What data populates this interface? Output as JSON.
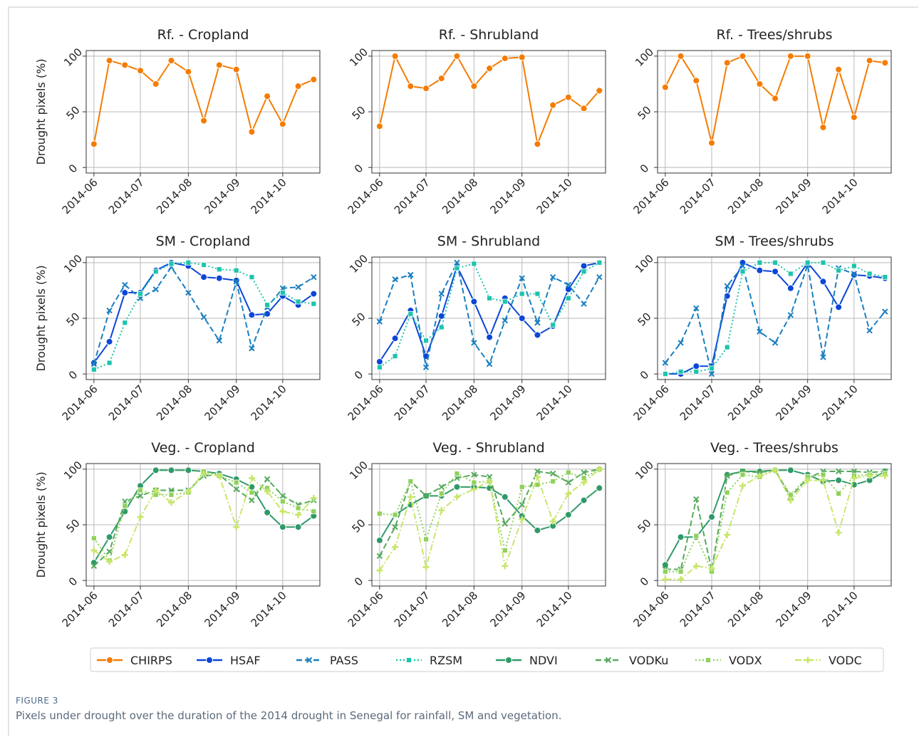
{
  "figure_label": "FIGURE 3",
  "caption": "Pixels under drought over the duration of the 2014 drought in Senegal for rainfall, SM and vegetation.",
  "chart_data": [
    {
      "type": "line",
      "title": "Rf. - Cropland",
      "ylabel": "Drought pixels (%)",
      "x": [
        152,
        162,
        172,
        182,
        192,
        202,
        213,
        223,
        233,
        244,
        254,
        264,
        274,
        284,
        294
      ],
      "xlim": [
        147,
        298
      ],
      "xticks": [
        {
          "value": 152,
          "label": "2014-06"
        },
        {
          "value": 182,
          "label": "2014-07"
        },
        {
          "value": 213,
          "label": "2014-08"
        },
        {
          "value": 244,
          "label": "2014-09"
        },
        {
          "value": 274,
          "label": "2014-10"
        }
      ],
      "ylim": [
        -5,
        105
      ],
      "yticks": [
        0,
        50,
        100
      ],
      "grid": true,
      "series": [
        {
          "name": "CHIRPS",
          "color": "#f57c00",
          "dash": "solid",
          "marker": "circle",
          "values": [
            21,
            96,
            92,
            87,
            75,
            96,
            86,
            42,
            92,
            88,
            32,
            64,
            39,
            73,
            79
          ]
        }
      ]
    },
    {
      "type": "line",
      "title": "Rf. - Shrubland",
      "x": [
        152,
        162,
        172,
        182,
        192,
        202,
        213,
        223,
        233,
        244,
        254,
        264,
        274,
        284,
        294
      ],
      "xlim": [
        147,
        298
      ],
      "xticks": [
        {
          "value": 152,
          "label": "2014-06"
        },
        {
          "value": 182,
          "label": "2014-07"
        },
        {
          "value": 213,
          "label": "2014-08"
        },
        {
          "value": 244,
          "label": "2014-09"
        },
        {
          "value": 274,
          "label": "2014-10"
        }
      ],
      "ylim": [
        -5,
        105
      ],
      "yticks": [
        0,
        50,
        100
      ],
      "grid": true,
      "series": [
        {
          "name": "CHIRPS",
          "color": "#f57c00",
          "dash": "solid",
          "marker": "circle",
          "values": [
            37,
            100,
            73,
            71,
            80,
            100,
            73,
            89,
            98,
            99,
            21,
            56,
            63,
            53,
            69
          ]
        }
      ]
    },
    {
      "type": "line",
      "title": "Rf. - Trees/shrubs",
      "x": [
        152,
        162,
        172,
        182,
        192,
        202,
        213,
        223,
        233,
        244,
        254,
        264,
        274,
        284,
        294
      ],
      "xlim": [
        147,
        298
      ],
      "xticks": [
        {
          "value": 152,
          "label": "2014-06"
        },
        {
          "value": 182,
          "label": "2014-07"
        },
        {
          "value": 213,
          "label": "2014-08"
        },
        {
          "value": 244,
          "label": "2014-09"
        },
        {
          "value": 274,
          "label": "2014-10"
        }
      ],
      "ylim": [
        -5,
        105
      ],
      "yticks": [
        0,
        50,
        100
      ],
      "grid": true,
      "series": [
        {
          "name": "CHIRPS",
          "color": "#f57c00",
          "dash": "solid",
          "marker": "circle",
          "values": [
            72,
            100,
            78,
            22,
            94,
            100,
            75,
            62,
            100,
            100,
            36,
            88,
            45,
            96,
            94
          ]
        }
      ]
    },
    {
      "type": "line",
      "title": "SM - Cropland",
      "ylabel": "Drought pixels (%)",
      "x": [
        152,
        162,
        172,
        182,
        192,
        202,
        213,
        223,
        233,
        244,
        254,
        264,
        274,
        284,
        294
      ],
      "xlim": [
        147,
        298
      ],
      "xticks": [
        {
          "value": 152,
          "label": "2014-06"
        },
        {
          "value": 182,
          "label": "2014-07"
        },
        {
          "value": 213,
          "label": "2014-08"
        },
        {
          "value": 244,
          "label": "2014-09"
        },
        {
          "value": 274,
          "label": "2014-10"
        }
      ],
      "ylim": [
        -5,
        105
      ],
      "yticks": [
        0,
        50,
        100
      ],
      "grid": true,
      "series": [
        {
          "name": "HSAF",
          "color": "#0b46d8",
          "dash": "solid",
          "marker": "circle",
          "values": [
            10,
            29,
            73,
            73,
            93,
            100,
            97,
            87,
            86,
            84,
            53,
            54,
            70,
            62,
            72
          ]
        },
        {
          "name": "PASS",
          "color": "#1a7fc0",
          "dash": "dashed",
          "marker": "x",
          "values": [
            9,
            57,
            80,
            68,
            76,
            96,
            73,
            51,
            30,
            83,
            23,
            60,
            77,
            78,
            87
          ]
        },
        {
          "name": "RZSM",
          "color": "#1cc4ad",
          "dash": "dotted",
          "marker": "square",
          "values": [
            4,
            10,
            46,
            72,
            92,
            99,
            100,
            98,
            94,
            93,
            87,
            62,
            73,
            65,
            63
          ]
        }
      ]
    },
    {
      "type": "line",
      "title": "SM - Shrubland",
      "x": [
        152,
        162,
        172,
        182,
        192,
        202,
        213,
        223,
        233,
        244,
        254,
        264,
        274,
        284,
        294
      ],
      "xlim": [
        147,
        298
      ],
      "xticks": [
        {
          "value": 152,
          "label": "2014-06"
        },
        {
          "value": 182,
          "label": "2014-07"
        },
        {
          "value": 213,
          "label": "2014-08"
        },
        {
          "value": 244,
          "label": "2014-09"
        },
        {
          "value": 274,
          "label": "2014-10"
        }
      ],
      "ylim": [
        -5,
        105
      ],
      "yticks": [
        0,
        50,
        100
      ],
      "grid": true,
      "series": [
        {
          "name": "HSAF",
          "color": "#0b46d8",
          "dash": "solid",
          "marker": "circle",
          "values": [
            11,
            32,
            57,
            16,
            52,
            97,
            65,
            33,
            68,
            50,
            35,
            43,
            76,
            97,
            100
          ]
        },
        {
          "name": "PASS",
          "color": "#1a7fc0",
          "dash": "dashed",
          "marker": "x",
          "values": [
            47,
            85,
            89,
            6,
            72,
            100,
            28,
            9,
            48,
            86,
            46,
            87,
            80,
            63,
            87
          ]
        },
        {
          "name": "RZSM",
          "color": "#1cc4ad",
          "dash": "dotted",
          "marker": "square",
          "values": [
            6,
            16,
            54,
            30,
            42,
            95,
            99,
            68,
            65,
            72,
            72,
            44,
            68,
            92,
            100
          ]
        }
      ]
    },
    {
      "type": "line",
      "title": "SM - Trees/shrubs",
      "x": [
        152,
        162,
        172,
        182,
        192,
        202,
        213,
        223,
        233,
        244,
        254,
        264,
        274,
        284,
        294
      ],
      "xlim": [
        147,
        298
      ],
      "xticks": [
        {
          "value": 152,
          "label": "2014-06"
        },
        {
          "value": 182,
          "label": "2014-07"
        },
        {
          "value": 213,
          "label": "2014-08"
        },
        {
          "value": 244,
          "label": "2014-09"
        },
        {
          "value": 274,
          "label": "2014-10"
        }
      ],
      "ylim": [
        -5,
        105
      ],
      "yticks": [
        0,
        50,
        100
      ],
      "grid": true,
      "series": [
        {
          "name": "HSAF",
          "color": "#0b46d8",
          "dash": "solid",
          "marker": "circle",
          "values": [
            0,
            0,
            7,
            7,
            70,
            100,
            93,
            92,
            77,
            100,
            83,
            60,
            89,
            88,
            86
          ]
        },
        {
          "name": "PASS",
          "color": "#1a7fc0",
          "dash": "dashed",
          "marker": "x",
          "values": [
            10,
            28,
            59,
            0,
            79,
            97,
            38,
            28,
            53,
            98,
            15,
            95,
            90,
            39,
            56
          ]
        },
        {
          "name": "RZSM",
          "color": "#1cc4ad",
          "dash": "dotted",
          "marker": "square",
          "values": [
            0,
            2,
            2,
            5,
            24,
            92,
            100,
            100,
            90,
            100,
            100,
            93,
            97,
            90,
            87
          ]
        }
      ]
    },
    {
      "type": "line",
      "title": "Veg. - Cropland",
      "ylabel": "Drought pixels (%)",
      "x": [
        152,
        162,
        172,
        182,
        192,
        202,
        213,
        223,
        233,
        244,
        254,
        264,
        274,
        284,
        294
      ],
      "xlim": [
        147,
        298
      ],
      "xticks": [
        {
          "value": 152,
          "label": "2014-06"
        },
        {
          "value": 182,
          "label": "2014-07"
        },
        {
          "value": 213,
          "label": "2014-08"
        },
        {
          "value": 244,
          "label": "2014-09"
        },
        {
          "value": 274,
          "label": "2014-10"
        }
      ],
      "ylim": [
        -5,
        105
      ],
      "yticks": [
        0,
        50,
        100
      ],
      "grid": true,
      "series": [
        {
          "name": "NDVI",
          "color": "#2f9a68",
          "dash": "solid",
          "marker": "circle",
          "values": [
            16,
            39,
            62,
            85,
            99,
            99,
            99,
            98,
            96,
            91,
            84,
            61,
            48,
            48,
            58
          ]
        },
        {
          "name": "VODKu",
          "color": "#56aa5c",
          "dash": "dashed",
          "marker": "x",
          "values": [
            13,
            26,
            71,
            76,
            81,
            81,
            81,
            94,
            95,
            82,
            72,
            91,
            76,
            68,
            72
          ]
        },
        {
          "name": "VODX",
          "color": "#8fd15a",
          "dash": "dotted",
          "marker": "square",
          "values": [
            38,
            18,
            67,
            81,
            77,
            77,
            79,
            98,
            94,
            88,
            79,
            83,
            71,
            65,
            62
          ]
        },
        {
          "name": "VODC",
          "color": "#c8e66a",
          "dash": "dashdot",
          "marker": "plus",
          "values": [
            27,
            17,
            23,
            57,
            81,
            70,
            80,
            96,
            94,
            48,
            92,
            80,
            62,
            59,
            74
          ]
        }
      ]
    },
    {
      "type": "line",
      "title": "Veg. - Shrubland",
      "x": [
        152,
        162,
        172,
        182,
        192,
        202,
        213,
        223,
        233,
        244,
        254,
        264,
        274,
        284,
        294
      ],
      "xlim": [
        147,
        298
      ],
      "xticks": [
        {
          "value": 152,
          "label": "2014-06"
        },
        {
          "value": 182,
          "label": "2014-07"
        },
        {
          "value": 213,
          "label": "2014-08"
        },
        {
          "value": 244,
          "label": "2014-09"
        },
        {
          "value": 274,
          "label": "2014-10"
        }
      ],
      "ylim": [
        -5,
        105
      ],
      "yticks": [
        0,
        50,
        100
      ],
      "grid": true,
      "series": [
        {
          "name": "NDVI",
          "color": "#2f9a68",
          "dash": "solid",
          "marker": "circle",
          "values": [
            36,
            59,
            68,
            76,
            76,
            84,
            84,
            83,
            75,
            58,
            45,
            49,
            59,
            72,
            83
          ]
        },
        {
          "name": "VODKu",
          "color": "#56aa5c",
          "dash": "dashed",
          "marker": "x",
          "values": [
            22,
            48,
            89,
            76,
            84,
            92,
            95,
            93,
            51,
            68,
            98,
            96,
            88,
            97,
            100
          ]
        },
        {
          "name": "VODX",
          "color": "#8fd15a",
          "dash": "dotted",
          "marker": "square",
          "values": [
            60,
            59,
            89,
            37,
            78,
            96,
            88,
            89,
            27,
            84,
            86,
            89,
            97,
            92,
            100
          ]
        },
        {
          "name": "VODC",
          "color": "#c8e66a",
          "dash": "dashdot",
          "marker": "plus",
          "values": [
            9,
            30,
            75,
            12,
            63,
            75,
            82,
            89,
            13,
            55,
            93,
            53,
            78,
            88,
            100
          ]
        }
      ]
    },
    {
      "type": "line",
      "title": "Veg. - Trees/shrubs",
      "x": [
        152,
        162,
        172,
        182,
        192,
        202,
        213,
        223,
        233,
        244,
        254,
        264,
        274,
        284,
        294
      ],
      "xlim": [
        147,
        298
      ],
      "xticks": [
        {
          "value": 152,
          "label": "2014-06"
        },
        {
          "value": 182,
          "label": "2014-07"
        },
        {
          "value": 213,
          "label": "2014-08"
        },
        {
          "value": 244,
          "label": "2014-09"
        },
        {
          "value": 274,
          "label": "2014-10"
        }
      ],
      "ylim": [
        -5,
        105
      ],
      "yticks": [
        0,
        50,
        100
      ],
      "grid": true,
      "series": [
        {
          "name": "NDVI",
          "color": "#2f9a68",
          "dash": "solid",
          "marker": "circle",
          "values": [
            14,
            39,
            39,
            57,
            95,
            98,
            98,
            99,
            99,
            95,
            89,
            90,
            86,
            90,
            98
          ]
        },
        {
          "name": "VODKu",
          "color": "#56aa5c",
          "dash": "dashed",
          "marker": "x",
          "values": [
            10,
            10,
            73,
            9,
            94,
            98,
            97,
            99,
            75,
            92,
            98,
            98,
            98,
            97,
            98
          ]
        },
        {
          "name": "VODX",
          "color": "#8fd15a",
          "dash": "dotted",
          "marker": "square",
          "values": [
            8,
            8,
            40,
            8,
            79,
            95,
            93,
            99,
            77,
            93,
            95,
            78,
            94,
            95,
            96
          ]
        },
        {
          "name": "VODC",
          "color": "#c8e66a",
          "dash": "dashdot",
          "marker": "plus",
          "values": [
            1,
            1,
            13,
            11,
            41,
            85,
            94,
            99,
            72,
            90,
            90,
            43,
            92,
            94,
            94
          ]
        }
      ]
    }
  ]
}
